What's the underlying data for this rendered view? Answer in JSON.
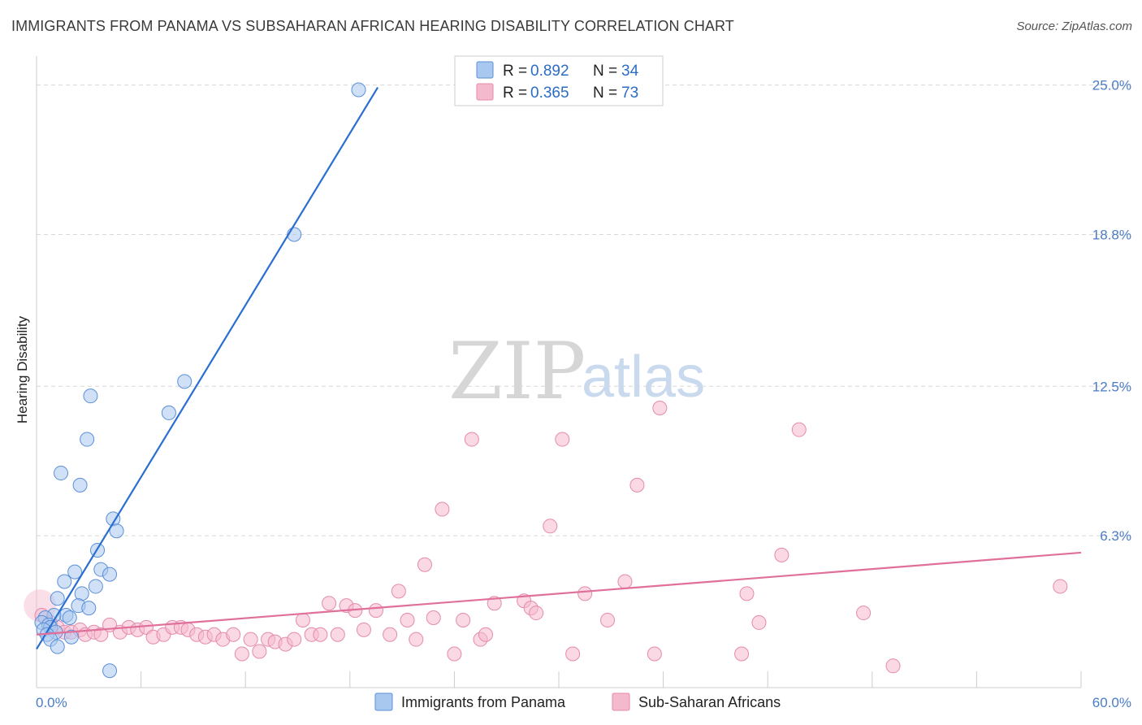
{
  "header": {
    "title": "IMMIGRANTS FROM PANAMA VS SUBSAHARAN AFRICAN HEARING DISABILITY CORRELATION CHART",
    "source": "Source: ZipAtlas.com"
  },
  "watermark": {
    "zip": "ZIP",
    "atlas": "atlas"
  },
  "colors": {
    "blue_fill": "#a9c8f0",
    "blue_stroke": "#5b8fd6",
    "blue_line": "#2a6fd0",
    "pink_fill": "#f5b9cd",
    "pink_stroke": "#e58aab",
    "pink_line": "#e0709a",
    "grid": "#d8d8d8",
    "axis": "#cccccc"
  },
  "legend": {
    "rows": [
      {
        "r_label": "R = ",
        "r_value": "0.892",
        "n_label": "N = ",
        "n_value": "34"
      },
      {
        "r_label": "R = ",
        "r_value": "0.365",
        "n_label": "N = ",
        "n_value": "73"
      }
    ]
  },
  "chart_data": {
    "type": "scatter",
    "title": "IMMIGRANTS FROM PANAMA VS SUBSAHARAN AFRICAN HEARING DISABILITY CORRELATION CHART",
    "xlabel": "",
    "ylabel": "Hearing Disability",
    "xlim": [
      0,
      60
    ],
    "ylim": [
      0,
      26.2
    ],
    "x_tick_labels": [
      "0.0%",
      "60.0%"
    ],
    "y_ticks": [
      6.3,
      12.5,
      18.8,
      25.0
    ],
    "y_tick_labels": [
      "6.3%",
      "12.5%",
      "18.8%",
      "25.0%"
    ],
    "grid": true,
    "series": [
      {
        "name": "Immigrants from Panama",
        "color": "#a9c8f0",
        "trend": {
          "x": [
            0,
            19.6
          ],
          "y": [
            1.6,
            24.9
          ]
        },
        "points": [
          {
            "x": 18.5,
            "y": 24.8
          },
          {
            "x": 14.8,
            "y": 18.8
          },
          {
            "x": 8.5,
            "y": 12.7
          },
          {
            "x": 7.6,
            "y": 11.4
          },
          {
            "x": 3.1,
            "y": 12.1
          },
          {
            "x": 2.9,
            "y": 10.3
          },
          {
            "x": 1.4,
            "y": 8.9
          },
          {
            "x": 2.5,
            "y": 8.4
          },
          {
            "x": 4.4,
            "y": 7.0
          },
          {
            "x": 4.6,
            "y": 6.5
          },
          {
            "x": 3.5,
            "y": 5.7
          },
          {
            "x": 3.7,
            "y": 4.9
          },
          {
            "x": 4.2,
            "y": 4.7
          },
          {
            "x": 2.2,
            "y": 4.8
          },
          {
            "x": 1.6,
            "y": 4.4
          },
          {
            "x": 3.4,
            "y": 4.2
          },
          {
            "x": 2.6,
            "y": 3.9
          },
          {
            "x": 1.2,
            "y": 3.7
          },
          {
            "x": 2.4,
            "y": 3.4
          },
          {
            "x": 3.0,
            "y": 3.3
          },
          {
            "x": 1.7,
            "y": 3.0
          },
          {
            "x": 1.0,
            "y": 3.0
          },
          {
            "x": 1.9,
            "y": 2.9
          },
          {
            "x": 0.5,
            "y": 2.9
          },
          {
            "x": 0.3,
            "y": 2.7
          },
          {
            "x": 0.7,
            "y": 2.6
          },
          {
            "x": 0.8,
            "y": 2.5
          },
          {
            "x": 0.4,
            "y": 2.4
          },
          {
            "x": 1.1,
            "y": 2.3
          },
          {
            "x": 0.6,
            "y": 2.2
          },
          {
            "x": 2.0,
            "y": 2.1
          },
          {
            "x": 0.8,
            "y": 2.0
          },
          {
            "x": 1.2,
            "y": 1.7
          },
          {
            "x": 4.2,
            "y": 0.7
          }
        ]
      },
      {
        "name": "Sub-Saharan Africans",
        "color": "#f5b9cd",
        "trend": {
          "x": [
            0,
            60
          ],
          "y": [
            2.2,
            5.6
          ]
        },
        "points": [
          {
            "x": 0.3,
            "y": 3.0
          },
          {
            "x": 0.8,
            "y": 2.7
          },
          {
            "x": 1.2,
            "y": 2.5
          },
          {
            "x": 1.6,
            "y": 2.3
          },
          {
            "x": 2.0,
            "y": 2.3
          },
          {
            "x": 2.5,
            "y": 2.4
          },
          {
            "x": 2.8,
            "y": 2.2
          },
          {
            "x": 3.3,
            "y": 2.3
          },
          {
            "x": 3.7,
            "y": 2.2
          },
          {
            "x": 4.2,
            "y": 2.6
          },
          {
            "x": 4.8,
            "y": 2.3
          },
          {
            "x": 5.3,
            "y": 2.5
          },
          {
            "x": 5.8,
            "y": 2.4
          },
          {
            "x": 6.3,
            "y": 2.5
          },
          {
            "x": 6.7,
            "y": 2.1
          },
          {
            "x": 7.3,
            "y": 2.2
          },
          {
            "x": 7.8,
            "y": 2.5
          },
          {
            "x": 8.3,
            "y": 2.5
          },
          {
            "x": 8.7,
            "y": 2.4
          },
          {
            "x": 9.2,
            "y": 2.2
          },
          {
            "x": 9.7,
            "y": 2.1
          },
          {
            "x": 10.2,
            "y": 2.2
          },
          {
            "x": 10.7,
            "y": 2.0
          },
          {
            "x": 11.3,
            "y": 2.2
          },
          {
            "x": 11.8,
            "y": 1.4
          },
          {
            "x": 12.3,
            "y": 2.0
          },
          {
            "x": 12.8,
            "y": 1.5
          },
          {
            "x": 13.3,
            "y": 2.0
          },
          {
            "x": 13.7,
            "y": 1.9
          },
          {
            "x": 14.3,
            "y": 1.8
          },
          {
            "x": 14.8,
            "y": 2.0
          },
          {
            "x": 15.3,
            "y": 2.8
          },
          {
            "x": 15.8,
            "y": 2.2
          },
          {
            "x": 16.3,
            "y": 2.2
          },
          {
            "x": 16.8,
            "y": 3.5
          },
          {
            "x": 17.3,
            "y": 2.2
          },
          {
            "x": 17.8,
            "y": 3.4
          },
          {
            "x": 18.3,
            "y": 3.2
          },
          {
            "x": 18.8,
            "y": 2.4
          },
          {
            "x": 19.5,
            "y": 3.2
          },
          {
            "x": 20.3,
            "y": 2.2
          },
          {
            "x": 20.8,
            "y": 4.0
          },
          {
            "x": 21.3,
            "y": 2.8
          },
          {
            "x": 21.8,
            "y": 2.0
          },
          {
            "x": 22.3,
            "y": 5.1
          },
          {
            "x": 22.8,
            "y": 2.9
          },
          {
            "x": 23.3,
            "y": 7.4
          },
          {
            "x": 24.0,
            "y": 1.4
          },
          {
            "x": 24.5,
            "y": 2.8
          },
          {
            "x": 25.0,
            "y": 10.3
          },
          {
            "x": 25.5,
            "y": 2.0
          },
          {
            "x": 25.8,
            "y": 2.2
          },
          {
            "x": 26.3,
            "y": 3.5
          },
          {
            "x": 28.0,
            "y": 3.6
          },
          {
            "x": 28.4,
            "y": 3.3
          },
          {
            "x": 28.7,
            "y": 3.1
          },
          {
            "x": 29.5,
            "y": 6.7
          },
          {
            "x": 30.2,
            "y": 10.3
          },
          {
            "x": 30.8,
            "y": 1.4
          },
          {
            "x": 31.5,
            "y": 3.9
          },
          {
            "x": 32.8,
            "y": 2.8
          },
          {
            "x": 33.8,
            "y": 4.4
          },
          {
            "x": 34.5,
            "y": 8.4
          },
          {
            "x": 35.5,
            "y": 1.4
          },
          {
            "x": 35.8,
            "y": 11.6
          },
          {
            "x": 40.5,
            "y": 1.4
          },
          {
            "x": 40.8,
            "y": 3.9
          },
          {
            "x": 41.5,
            "y": 2.7
          },
          {
            "x": 42.8,
            "y": 5.5
          },
          {
            "x": 43.8,
            "y": 10.7
          },
          {
            "x": 47.5,
            "y": 3.1
          },
          {
            "x": 49.2,
            "y": 0.9
          },
          {
            "x": 58.8,
            "y": 4.2
          }
        ]
      }
    ]
  }
}
